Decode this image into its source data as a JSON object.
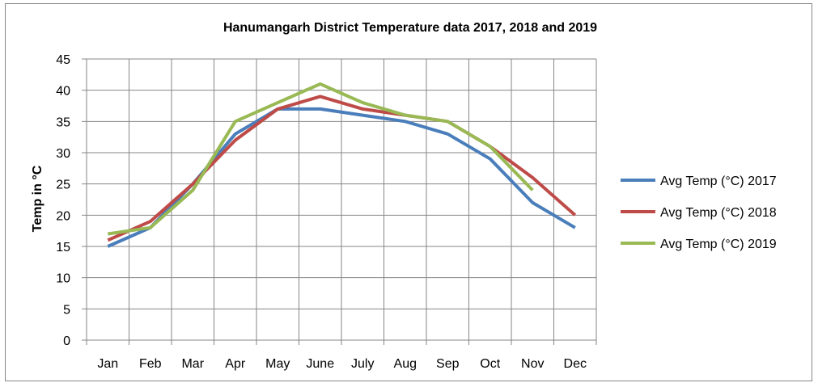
{
  "chart_data": {
    "type": "line",
    "title": "Hanumangarh District Temperature data 2017, 2018 and 2019",
    "xlabel": "",
    "ylabel": "Temp in °C",
    "categories": [
      "Jan",
      "Feb",
      "Mar",
      "Apr",
      "May",
      "June",
      "July",
      "Aug",
      "Sep",
      "Oct",
      "Nov",
      "Dec"
    ],
    "ylim": [
      0,
      45
    ],
    "yticks": [
      0,
      5,
      10,
      15,
      20,
      25,
      30,
      35,
      40,
      45
    ],
    "grid": true,
    "legend_position": "right",
    "series": [
      {
        "name": "Avg Temp (°C) 2017",
        "color": "#4a7ebb",
        "values": [
          15,
          18,
          25,
          33,
          37,
          37,
          36,
          35,
          33,
          29,
          22,
          18
        ]
      },
      {
        "name": "Avg Temp (°C) 2018",
        "color": "#be4b48",
        "values": [
          16,
          19,
          25,
          32,
          37,
          39,
          37,
          36,
          35,
          31,
          26,
          20
        ]
      },
      {
        "name": "Avg Temp (°C) 2019",
        "color": "#98b954",
        "values": [
          17,
          18,
          24,
          35,
          38,
          41,
          38,
          36,
          35,
          31,
          24,
          null
        ]
      }
    ]
  }
}
